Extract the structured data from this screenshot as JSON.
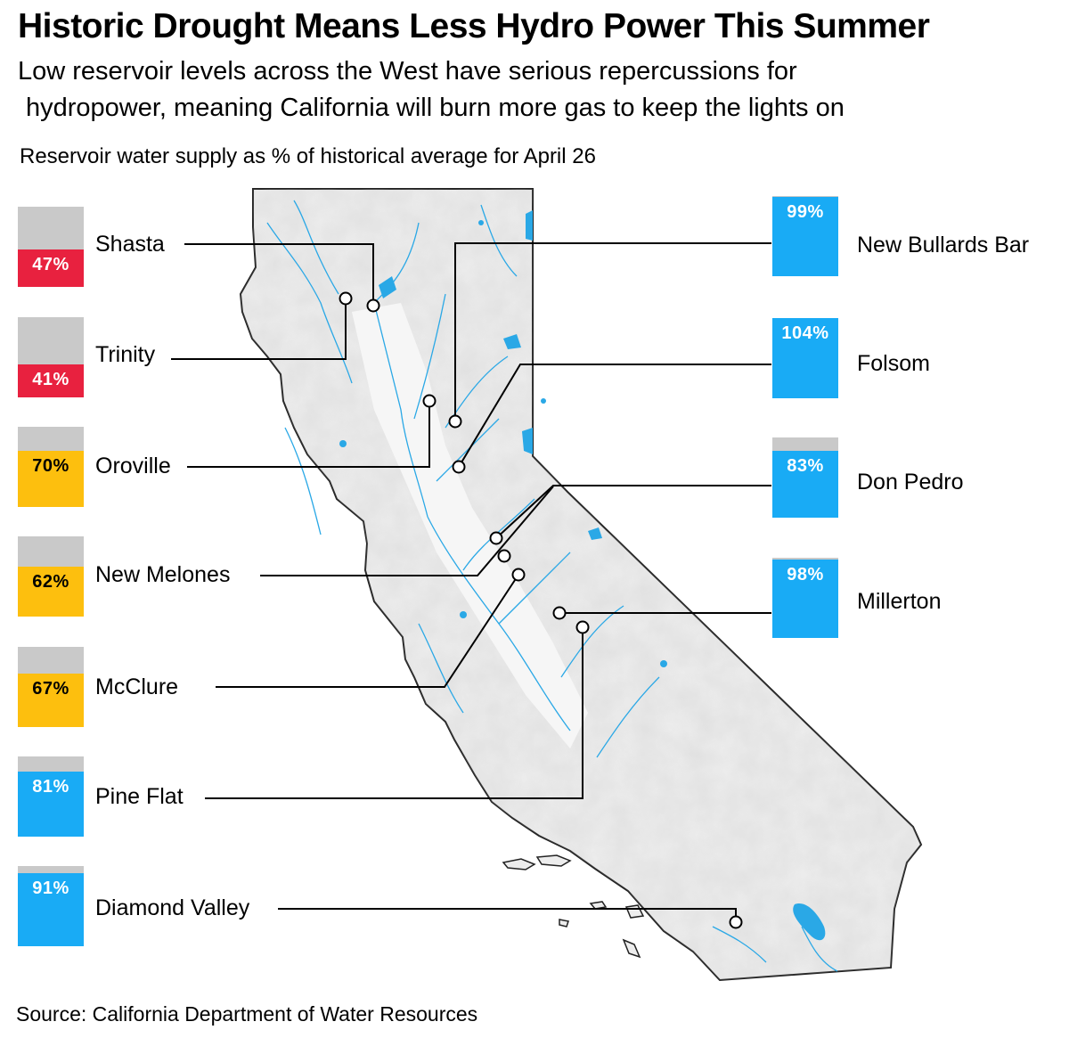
{
  "title": "Historic Drought Means Less Hydro Power This Summer",
  "subtitle_line1": "Low reservoir levels across the West have serious repercussions for",
  "subtitle_line2": "hydropower, meaning California will burn more gas to keep the lights on",
  "measure_label": "Reservoir water supply as % of historical average for April 26",
  "source": "Source: California Department of Water Resources",
  "colors": {
    "low": "#e8213f",
    "medium": "#fdbf0e",
    "high": "#19abf5",
    "unfilled": "#c9c9c9",
    "land": "#ececec",
    "water": "#2aa8e6"
  },
  "reservoirs": [
    {
      "name": "Shasta",
      "value": 47,
      "value_label": "47%",
      "level": "low"
    },
    {
      "name": "Trinity",
      "value": 41,
      "value_label": "41%",
      "level": "low"
    },
    {
      "name": "Oroville",
      "value": 70,
      "value_label": "70%",
      "level": "medium"
    },
    {
      "name": "New Melones",
      "value": 62,
      "value_label": "62%",
      "level": "medium"
    },
    {
      "name": "McClure",
      "value": 67,
      "value_label": "67%",
      "level": "medium"
    },
    {
      "name": "Pine Flat",
      "value": 81,
      "value_label": "81%",
      "level": "high"
    },
    {
      "name": "Diamond Valley",
      "value": 91,
      "value_label": "91%",
      "level": "high"
    },
    {
      "name": "New Bullards Bar",
      "value": 99,
      "value_label": "99%",
      "level": "high"
    },
    {
      "name": "Folsom",
      "value": 104,
      "value_label": "104%",
      "level": "high"
    },
    {
      "name": "Don Pedro",
      "value": 83,
      "value_label": "83%",
      "level": "high"
    },
    {
      "name": "Millerton",
      "value": 98,
      "value_label": "98%",
      "level": "high"
    }
  ]
}
